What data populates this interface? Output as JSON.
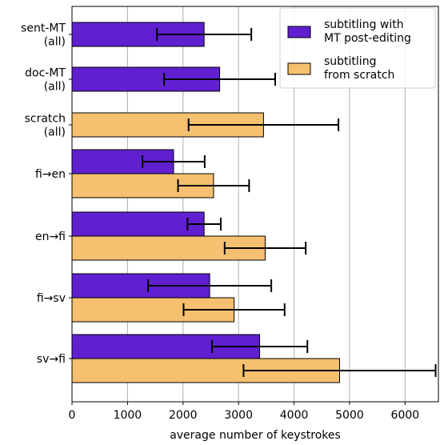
{
  "chart_data": {
    "type": "bar",
    "orientation": "horizontal",
    "xlabel": "average number of keystrokes",
    "ylabel": "",
    "title": "",
    "xlim": [
      0,
      6600
    ],
    "xticks": [
      0,
      1000,
      2000,
      3000,
      4000,
      5000,
      6000
    ],
    "grid": {
      "x": true,
      "y": false
    },
    "legend_position": "top-right",
    "colors": {
      "mt": "#6020d0",
      "scratch": "#f5c070",
      "grid": "#b0b0b0",
      "edge": "#000000"
    },
    "series": [
      {
        "key": "mt",
        "name": "subtitling with\nMT post-editing"
      },
      {
        "key": "scratch",
        "name": "subtitling\nfrom scratch"
      }
    ],
    "groups": [
      {
        "label": "sent-MT\n(all)",
        "bars": [
          {
            "series": "mt",
            "value": 2380,
            "error": 850
          }
        ]
      },
      {
        "label": "doc-MT\n(all)",
        "bars": [
          {
            "series": "mt",
            "value": 2660,
            "error": 1000
          }
        ]
      },
      {
        "label": "scratch\n(all)",
        "bars": [
          {
            "series": "scratch",
            "value": 3450,
            "error": 1350
          }
        ]
      },
      {
        "label": "fi→en",
        "bars": [
          {
            "series": "mt",
            "value": 1830,
            "error": 560
          },
          {
            "series": "scratch",
            "value": 2550,
            "error": 640
          }
        ]
      },
      {
        "label": "en→fi",
        "bars": [
          {
            "series": "mt",
            "value": 2380,
            "error": 300
          },
          {
            "series": "scratch",
            "value": 3480,
            "error": 730
          }
        ]
      },
      {
        "label": "fi→sv",
        "bars": [
          {
            "series": "mt",
            "value": 2480,
            "error": 1110
          },
          {
            "series": "scratch",
            "value": 2920,
            "error": 910
          }
        ]
      },
      {
        "label": "sv→fi",
        "bars": [
          {
            "series": "mt",
            "value": 3380,
            "error": 860
          },
          {
            "series": "scratch",
            "value": 4820,
            "error": 1730
          }
        ]
      }
    ]
  }
}
